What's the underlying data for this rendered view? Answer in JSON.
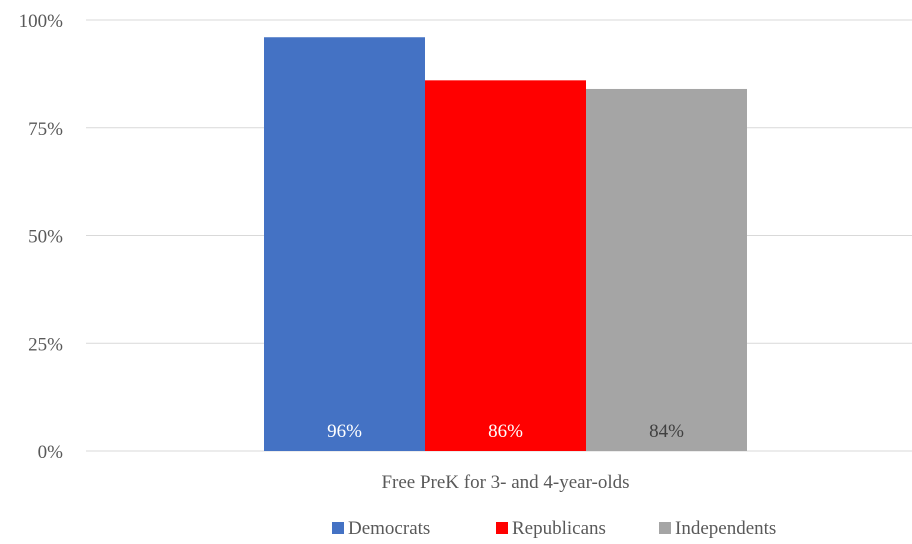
{
  "chart_data": {
    "type": "bar",
    "title": "",
    "xlabel": "",
    "ylabel": "",
    "categories": [
      "Free PreK for 3- and 4-year-olds"
    ],
    "series": [
      {
        "name": "Democrats",
        "values": [
          96
        ],
        "label": "96%",
        "color": "#4472c4",
        "label_color": "#ffffff"
      },
      {
        "name": "Republicans",
        "values": [
          86
        ],
        "label": "86%",
        "color": "#ff0000",
        "label_color": "#ffffff"
      },
      {
        "name": "Independents",
        "values": [
          84
        ],
        "label": "84%",
        "color": "#a5a5a5",
        "label_color": "#404040"
      }
    ],
    "ylim": [
      0,
      100
    ],
    "yticks": [
      {
        "value": 0,
        "label": "0%"
      },
      {
        "value": 25,
        "label": "25%"
      },
      {
        "value": 50,
        "label": "50%"
      },
      {
        "value": 75,
        "label": "75%"
      },
      {
        "value": 100,
        "label": "100%"
      }
    ],
    "grid": true,
    "gridline_color": "#d9d9d9",
    "legend_position": "bottom",
    "data_label_position": "inside-base"
  }
}
